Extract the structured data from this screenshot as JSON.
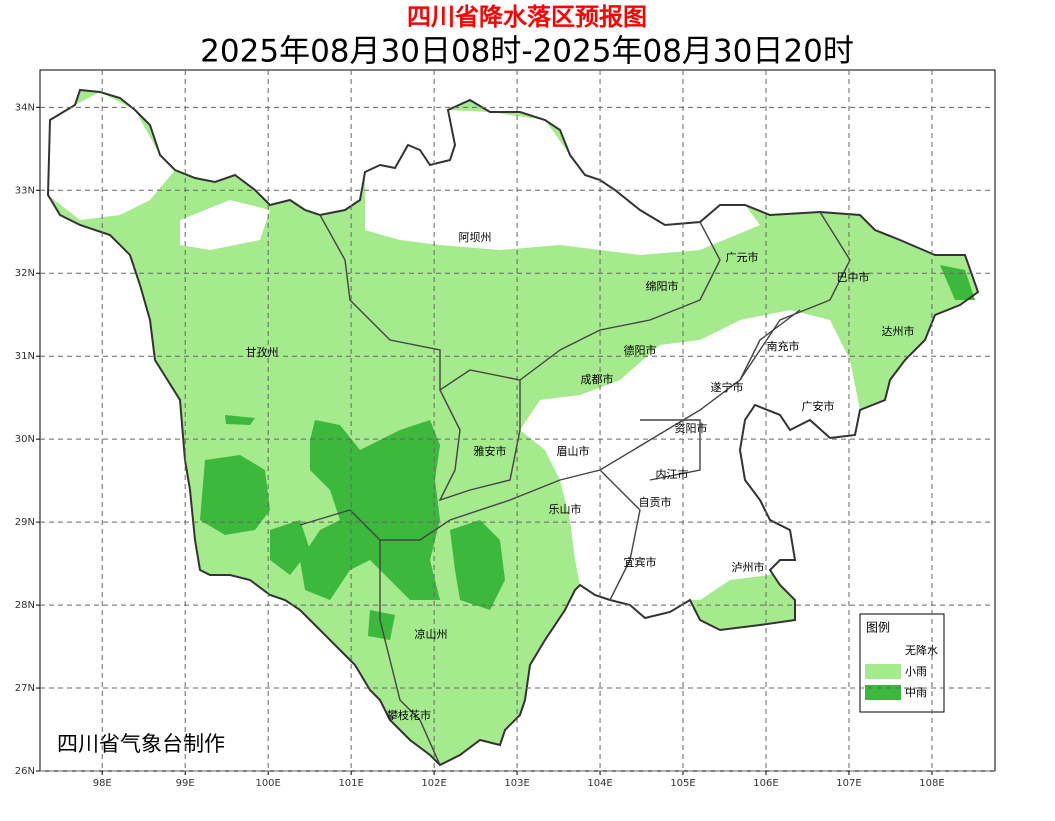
{
  "title": "四川省降水落区预报图",
  "subtitle": "2025年08月30日08时-2025年08月30日20时",
  "credit": "四川省气象台制作",
  "map": {
    "xlim": [
      97.25,
      108.76
    ],
    "ylim": [
      26,
      34.45
    ],
    "xticks": [
      {
        "value": 98,
        "label": "98E"
      },
      {
        "value": 99,
        "label": "99E"
      },
      {
        "value": 100,
        "label": "100E"
      },
      {
        "value": 101,
        "label": "101E"
      },
      {
        "value": 102,
        "label": "102E"
      },
      {
        "value": 103,
        "label": "103E"
      },
      {
        "value": 104,
        "label": "104E"
      },
      {
        "value": 105,
        "label": "105E"
      },
      {
        "value": 106,
        "label": "106E"
      },
      {
        "value": 107,
        "label": "107E"
      },
      {
        "value": 108,
        "label": "108E"
      }
    ],
    "yticks": [
      {
        "value": 26,
        "label": "26N"
      },
      {
        "value": 27,
        "label": "27N"
      },
      {
        "value": 28,
        "label": "28N"
      },
      {
        "value": 29,
        "label": "29N"
      },
      {
        "value": 30,
        "label": "30N"
      },
      {
        "value": 31,
        "label": "31N"
      },
      {
        "value": 32,
        "label": "32N"
      },
      {
        "value": 33,
        "label": "33N"
      },
      {
        "value": 34,
        "label": "34N"
      }
    ],
    "grid": true,
    "cities": [
      "阿坝州",
      "广元市",
      "巴中市",
      "绵阳市",
      "达州市",
      "甘孜州",
      "德阳市",
      "南充市",
      "成都市",
      "遂宁市",
      "广安市",
      "资阳市",
      "雅安市",
      "眉山市",
      "内江市",
      "自贡市",
      "乐山市",
      "宜宾市",
      "泸州市",
      "凉山州",
      "攀枝花市"
    ]
  },
  "legend": {
    "title": "图例",
    "items": [
      {
        "label": "无降水",
        "color": "#ffffff"
      },
      {
        "label": "小雨",
        "color": "#a6ea8e"
      },
      {
        "label": "中雨",
        "color": "#3cb83c"
      }
    ]
  }
}
